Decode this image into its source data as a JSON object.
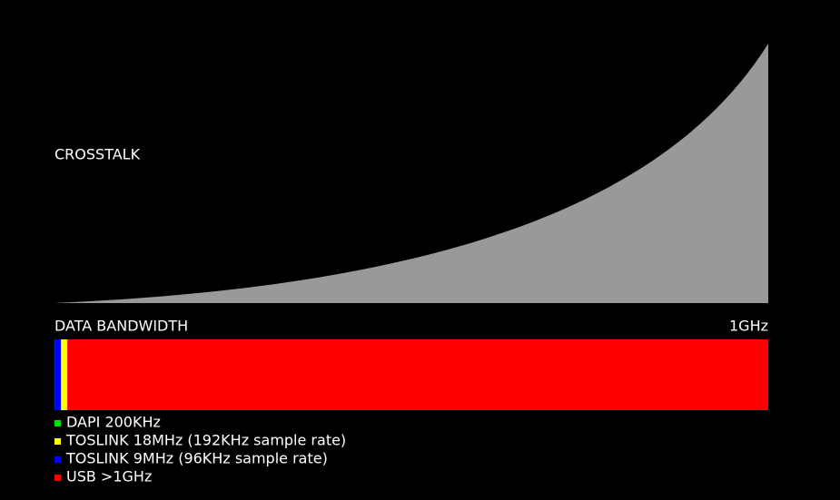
{
  "chart_data": {
    "type": "bar",
    "annotation": "CROSSTALK",
    "xlabel": "DATA BANDWIDTH",
    "xlim": [
      0,
      1000
    ],
    "xticks": [
      {
        "value": 1000,
        "label": "1GHz"
      }
    ],
    "series": [
      {
        "name": "DAPI 200KHz",
        "color": "#00e000",
        "values": [
          0.2
        ]
      },
      {
        "name": "TOSLINK 18MHz (192KHz sample rate)",
        "color": "#ffff00",
        "values": [
          18
        ]
      },
      {
        "name": "TOSLINK 9MHz (96KHz sample rate)",
        "color": "#0000ff",
        "values": [
          9
        ]
      },
      {
        "name": "USB >1GHz",
        "color": "#ff0000",
        "values": [
          1000
        ]
      }
    ]
  }
}
